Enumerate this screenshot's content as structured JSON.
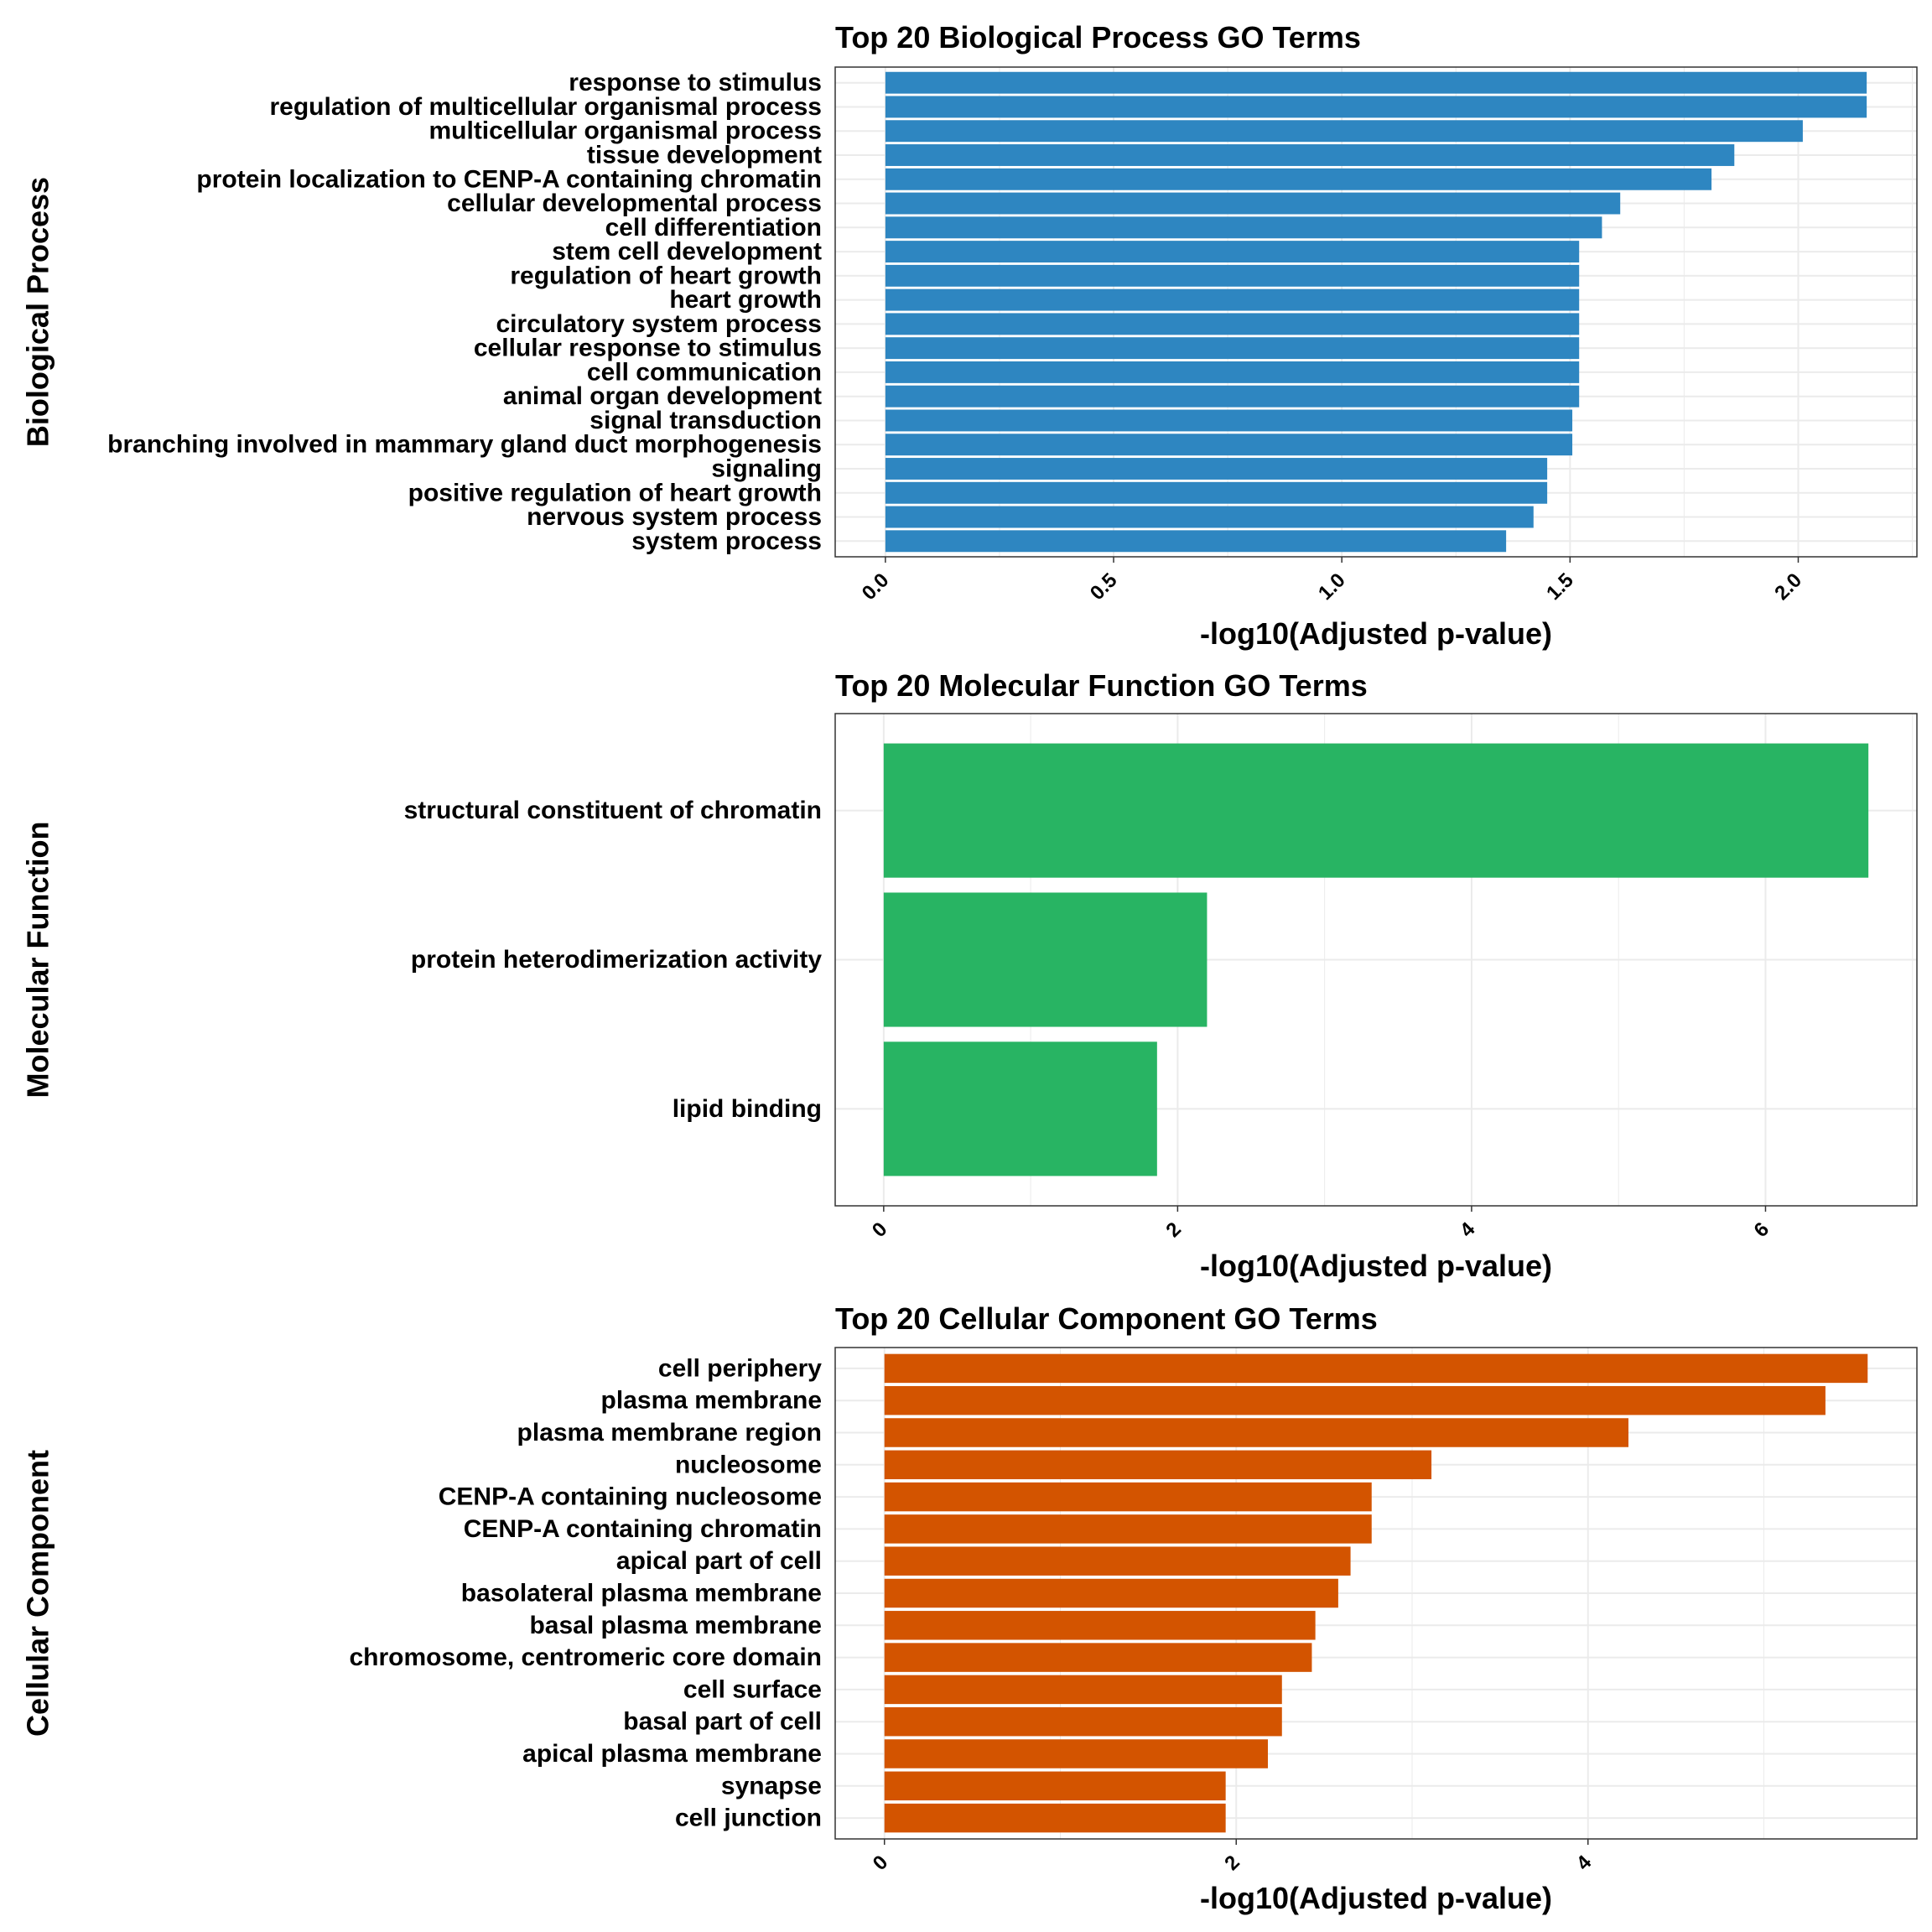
{
  "figure": {
    "background": "#ffffff",
    "grid_color": "#ebebeb",
    "panel_border_color": "#333333"
  },
  "chart_data": [
    {
      "type": "bar",
      "orientation": "horizontal",
      "title": "Top 20 Biological Process GO Terms",
      "xlabel": "-log10(Adjusted p-value)",
      "ylabel": "Biological Process",
      "color": "#2e86c1",
      "xlim": [
        -0.11,
        2.26
      ],
      "xticks": [
        0,
        0.5,
        1,
        1.5,
        2
      ],
      "xtick_labels": [
        "0.0",
        "0.5",
        "1.0",
        "1.5",
        "2.0"
      ],
      "grid": true,
      "categories": [
        "response to stimulus",
        "regulation of multicellular organismal process",
        "multicellular organismal process",
        "tissue development",
        "protein localization to CENP-A containing chromatin",
        "cellular developmental process",
        "cell differentiation",
        "stem cell development",
        "regulation of heart growth",
        "heart growth",
        "circulatory system process",
        "cellular response to stimulus",
        "cell communication",
        "animal organ development",
        "signal transduction",
        "branching involved in mammary gland duct morphogenesis",
        "signaling",
        "positive regulation of heart growth",
        "nervous system process",
        "system process"
      ],
      "values": [
        2.15,
        2.15,
        2.01,
        1.86,
        1.81,
        1.61,
        1.57,
        1.52,
        1.52,
        1.52,
        1.52,
        1.52,
        1.52,
        1.52,
        1.505,
        1.505,
        1.45,
        1.45,
        1.42,
        1.36
      ]
    },
    {
      "type": "bar",
      "orientation": "horizontal",
      "title": "Top 20 Molecular Function GO Terms",
      "xlabel": "-log10(Adjusted p-value)",
      "ylabel": "Molecular Function",
      "color": "#28b463",
      "xlim": [
        -0.33,
        7.03
      ],
      "xticks": [
        0,
        2,
        4,
        6
      ],
      "xtick_labels": [
        "0",
        "2",
        "4",
        "6"
      ],
      "grid": true,
      "categories": [
        "structural constituent of chromatin",
        "protein heterodimerization activity",
        "lipid binding"
      ],
      "values": [
        6.7,
        2.2,
        1.86
      ]
    },
    {
      "type": "bar",
      "orientation": "horizontal",
      "title": "Top 20 Cellular Component GO Terms",
      "xlabel": "-log10(Adjusted p-value)",
      "ylabel": "Cellular Component",
      "color": "#d35400",
      "xlim": [
        -0.28,
        5.87
      ],
      "xticks": [
        0,
        2,
        4
      ],
      "xtick_labels": [
        "0",
        "2",
        "4"
      ],
      "grid": true,
      "categories": [
        "cell periphery",
        "plasma membrane",
        "plasma membrane region",
        "nucleosome",
        "CENP-A containing nucleosome",
        "CENP-A containing chromatin",
        "apical part of cell",
        "basolateral plasma membrane",
        "basal plasma membrane",
        "chromosome, centromeric core domain",
        "cell surface",
        "basal part of cell",
        "apical plasma membrane",
        "synapse",
        "cell junction"
      ],
      "values": [
        5.59,
        5.35,
        4.23,
        3.11,
        2.77,
        2.77,
        2.65,
        2.58,
        2.45,
        2.43,
        2.26,
        2.26,
        2.18,
        1.94,
        1.94
      ]
    }
  ]
}
